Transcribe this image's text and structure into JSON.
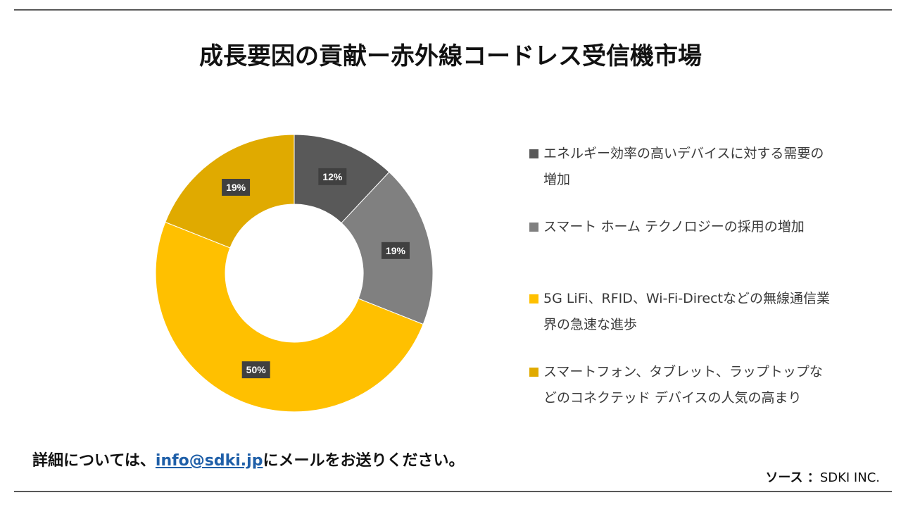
{
  "title": "成長要因の貢献ー赤外線コードレス受信機市場",
  "chart_data": {
    "type": "pie",
    "variant": "donut",
    "start_angle_deg": 0,
    "direction": "clockwise",
    "series": [
      {
        "name": "エネルギー効率の高いデバイスに対する需要の増加",
        "value": 12,
        "label": "12%",
        "color": "#595959"
      },
      {
        "name": "スマート ホーム テクノロジーの採用の増加",
        "value": 19,
        "label": "19%",
        "color": "#808080"
      },
      {
        "name": "5G LiFi、RFID、Wi-Fi-Directなどの無線通信業界の急速な進歩",
        "value": 50,
        "label": "50%",
        "color": "#ffc000"
      },
      {
        "name": "スマートフォン、タブレット、ラップトップなどのコネクテッド デバイスの人気の高まり",
        "value": 19,
        "label": "19%",
        "color": "#e0aa00"
      }
    ],
    "legend_position": "right"
  },
  "legend": [
    {
      "lines": [
        "エネルギー効率の高いデバイスに対する需要の",
        "増加"
      ],
      "color": "#595959"
    },
    {
      "lines": [
        "スマート ホーム テクノロジーの採用の増加"
      ],
      "color": "#808080"
    },
    {
      "lines": [
        "5G LiFi、RFID、Wi-Fi-Directなどの無線通信業",
        "界の急速な進歩"
      ],
      "color": "#ffc000"
    },
    {
      "lines": [
        "スマートフォン、タブレット、ラップトップな",
        "どのコネクテッド デバイスの人気の高まり"
      ],
      "color": "#e0aa00"
    }
  ],
  "footer": {
    "prefix": "詳細については、",
    "email": "info@sdki.jp",
    "suffix": "にメールをお送りください。"
  },
  "source": {
    "label": "ソース ：",
    "value": "SDKI INC."
  }
}
